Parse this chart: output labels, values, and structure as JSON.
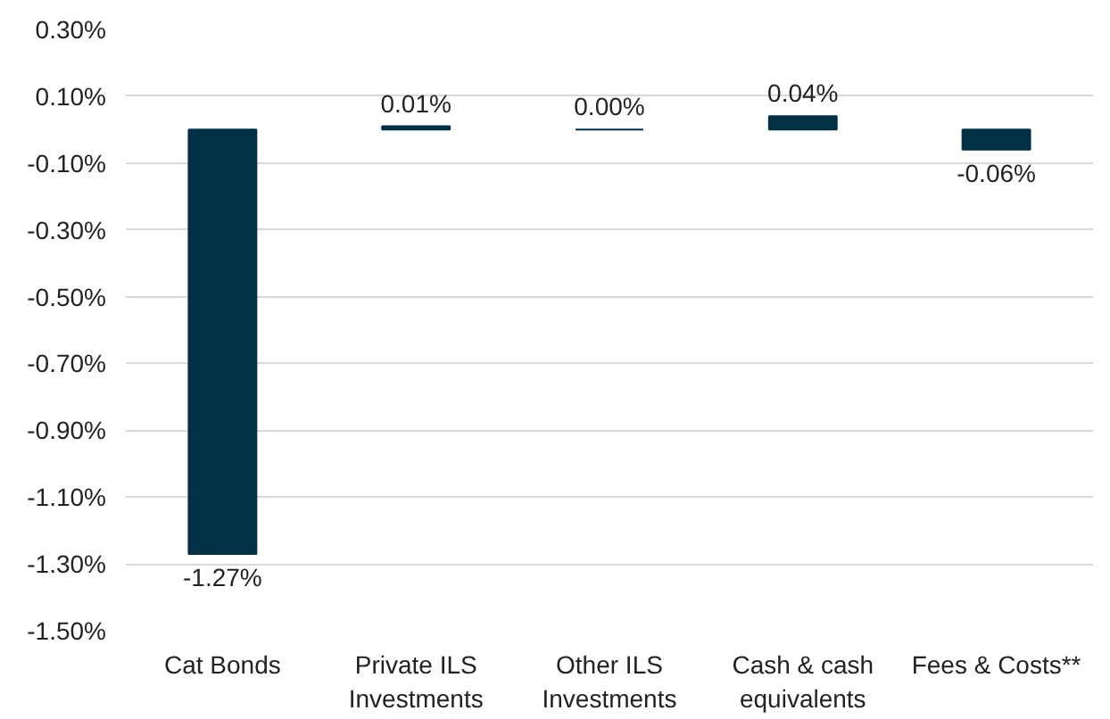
{
  "chart_data": {
    "type": "bar",
    "categories": [
      "Cat Bonds",
      "Private ILS\nInvestments",
      "Other ILS\nInvestments",
      "Cash & cash\nequivalents",
      "Fees & Costs**"
    ],
    "values": [
      -1.27,
      0.01,
      0.0,
      0.04,
      -0.06
    ],
    "value_labels": [
      "-1.27%",
      "0.01%",
      "0.00%",
      "0.04%",
      "-0.06%"
    ],
    "color": "#003145",
    "ylim": [
      -1.5,
      0.3
    ],
    "yticks": [
      {
        "value": 0.3,
        "label": "0.30%"
      },
      {
        "value": 0.1,
        "label": "0.10%"
      },
      {
        "value": -0.1,
        "label": "-0.10%"
      },
      {
        "value": -0.3,
        "label": "-0.30%"
      },
      {
        "value": -0.5,
        "label": "-0.50%"
      },
      {
        "value": -0.7,
        "label": "-0.70%"
      },
      {
        "value": -0.9,
        "label": "-0.90%"
      },
      {
        "value": -1.1,
        "label": "-1.10%"
      },
      {
        "value": -1.3,
        "label": "-1.30%"
      },
      {
        "value": -1.5,
        "label": "-1.50%"
      }
    ],
    "grid": "y"
  }
}
